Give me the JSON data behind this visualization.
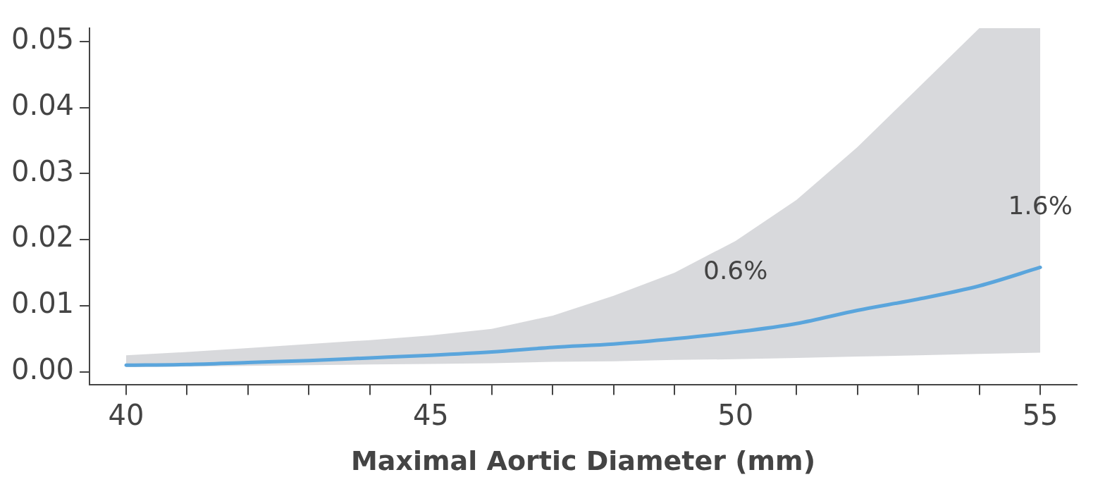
{
  "chart_data": {
    "type": "line",
    "xlabel": "Maximal Aortic Diameter (mm)",
    "xlim": [
      39.4,
      55.6
    ],
    "ylim": [
      -0.002,
      0.052
    ],
    "xticks": [
      40,
      {
        "value": 41,
        "label": null
      },
      {
        "value": 42,
        "label": null
      },
      {
        "value": 43,
        "label": null
      },
      {
        "value": 44,
        "label": null
      },
      45,
      {
        "value": 46,
        "label": null
      },
      {
        "value": 47,
        "label": null
      },
      {
        "value": 48,
        "label": null
      },
      {
        "value": 49,
        "label": null
      },
      50,
      {
        "value": 51,
        "label": null
      },
      {
        "value": 52,
        "label": null
      },
      {
        "value": 53,
        "label": null
      },
      {
        "value": 54,
        "label": null
      },
      55
    ],
    "yticks": [
      {
        "value": 0,
        "label": "0.00"
      },
      {
        "value": 0.01,
        "label": "0.01"
      },
      {
        "value": 0.02,
        "label": "0.02"
      },
      {
        "value": 0.03,
        "label": "0.03"
      },
      {
        "value": 0.04,
        "label": "0.04"
      },
      {
        "value": 0.05,
        "label": "0.05"
      }
    ],
    "x": [
      40,
      41,
      42,
      43,
      44,
      45,
      46,
      47,
      48,
      49,
      50,
      51,
      52,
      53,
      54,
      55
    ],
    "series": [
      {
        "color": "#5aa5dc",
        "values": [
          0.001,
          0.0011,
          0.0014,
          0.0017,
          0.0021,
          0.0025,
          0.003,
          0.0037,
          0.0042,
          0.005,
          0.006,
          0.0073,
          0.0093,
          0.011,
          0.013,
          0.0158
        ],
        "lower": [
          0.0007,
          0.0008,
          0.0009,
          0.001,
          0.0011,
          0.0012,
          0.0013,
          0.0015,
          0.0016,
          0.0018,
          0.0019,
          0.0021,
          0.0023,
          0.0025,
          0.0027,
          0.0029
        ],
        "upper": [
          0.0025,
          0.003,
          0.0036,
          0.0042,
          0.0048,
          0.0055,
          0.0065,
          0.0085,
          0.0115,
          0.015,
          0.0198,
          0.026,
          0.034,
          0.043,
          0.052,
          0.052
        ]
      }
    ],
    "annotations": [
      {
        "text": "0.6%",
        "x": 50,
        "y": 0.006
      },
      {
        "text": "1.6%",
        "x": 55,
        "y": 0.0158
      }
    ],
    "grid": false,
    "legend": false,
    "marker": "none",
    "line_style": "solid"
  }
}
